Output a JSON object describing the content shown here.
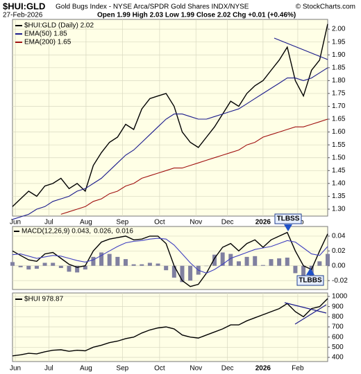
{
  "header": {
    "symbol": "$HUI:GLD",
    "description": "Gold Bugs Index - NYSE Arca/SPDR Gold Shares INDX/NYSE",
    "source": "© StockCharts.com",
    "date": "27-Feb-2026",
    "ohlc": "Open 1.99 High 2.03 Low 1.99 Close 2.02 Chg +0.01 (+0.46%)"
  },
  "chart_data": [
    {
      "type": "line",
      "legend_layout": "stacked",
      "grid": true,
      "x": [
        0,
        1,
        2,
        3,
        4,
        5,
        6,
        7,
        8,
        9,
        10,
        11,
        12,
        13,
        14,
        15,
        16,
        17,
        18,
        19,
        20,
        21,
        22,
        23,
        24,
        25,
        26,
        27,
        28,
        29,
        30,
        31,
        32,
        33,
        34,
        35,
        36,
        37,
        38,
        39
      ],
      "xlim": [
        0,
        39
      ],
      "xticks": [
        {
          "value": 0.35,
          "label": "Jun"
        },
        {
          "value": 4.5,
          "label": "Jul"
        },
        {
          "value": 9.1,
          "label": "Aug"
        },
        {
          "value": 13.6,
          "label": "Sep"
        },
        {
          "value": 18.2,
          "label": "Oct"
        },
        {
          "value": 22.7,
          "label": "Nov"
        },
        {
          "value": 26.6,
          "label": "Dec"
        },
        {
          "value": 31,
          "label": "2026"
        },
        {
          "value": 35.3,
          "label": "Feb"
        }
      ],
      "ylim": [
        1.273,
        2.038
      ],
      "yticks": [
        {
          "value": 1.3,
          "label": "1.30"
        },
        1.35,
        {
          "value": 1.4,
          "label": "1.40"
        },
        1.45,
        {
          "value": 1.5,
          "label": "1.50"
        },
        1.55,
        {
          "value": 1.6,
          "label": "1.60"
        },
        1.65,
        {
          "value": 1.7,
          "label": "1.70"
        },
        1.75,
        {
          "value": 1.8,
          "label": "1.80"
        },
        1.85,
        {
          "value": 1.9,
          "label": "1.90"
        },
        1.95,
        {
          "value": 2.0,
          "label": "2.00"
        }
      ],
      "series": [
        {
          "name": "$HUI:GLD (Daily) 2.02",
          "color": "#000000",
          "values": [
            1.31,
            1.34,
            1.37,
            1.35,
            1.39,
            1.4,
            1.42,
            1.38,
            1.4,
            1.37,
            1.47,
            1.52,
            1.56,
            1.58,
            1.63,
            1.61,
            1.69,
            1.73,
            1.74,
            1.75,
            1.7,
            1.6,
            1.56,
            1.54,
            1.58,
            1.62,
            1.67,
            1.72,
            1.7,
            1.75,
            1.78,
            1.8,
            1.84,
            1.88,
            1.93,
            1.8,
            1.74,
            1.84,
            1.88,
            2.02
          ]
        },
        {
          "name": "EMA(50) 1.85",
          "color": "#1a1a8c",
          "values": [
            1.26,
            1.27,
            1.28,
            1.3,
            1.31,
            1.33,
            1.34,
            1.35,
            1.37,
            1.38,
            1.4,
            1.42,
            1.45,
            1.48,
            1.51,
            1.53,
            1.56,
            1.59,
            1.62,
            1.65,
            1.67,
            1.67,
            1.66,
            1.65,
            1.65,
            1.66,
            1.67,
            1.68,
            1.69,
            1.71,
            1.73,
            1.75,
            1.77,
            1.79,
            1.81,
            1.81,
            1.8,
            1.81,
            1.83,
            1.85
          ]
        },
        {
          "name": "EMA(200) 1.65",
          "color": "#a01010",
          "values": [
            null,
            null,
            null,
            null,
            null,
            null,
            1.28,
            1.29,
            1.3,
            1.31,
            1.33,
            1.34,
            1.36,
            1.37,
            1.39,
            1.4,
            1.42,
            1.43,
            1.44,
            1.45,
            1.46,
            1.46,
            1.47,
            1.48,
            1.49,
            1.5,
            1.51,
            1.52,
            1.53,
            1.55,
            1.56,
            1.58,
            1.59,
            1.6,
            1.61,
            1.62,
            1.62,
            1.63,
            1.64,
            1.65
          ]
        }
      ]
    },
    {
      "type": "line",
      "legend_layout": "inline",
      "grid": true,
      "x": [
        0,
        1,
        2,
        3,
        4,
        5,
        6,
        7,
        8,
        9,
        10,
        11,
        12,
        13,
        14,
        15,
        16,
        17,
        18,
        19,
        20,
        21,
        22,
        23,
        24,
        25,
        26,
        27,
        28,
        29,
        30,
        31,
        32,
        33,
        34,
        35,
        36,
        37,
        38,
        39
      ],
      "xlim": [
        0,
        39
      ],
      "ylim": [
        -0.032,
        0.053
      ],
      "yticks": [
        {
          "value": -0.02,
          "label": "-0.02"
        },
        {
          "value": 0,
          "label": "0.00"
        },
        0.02,
        0.04
      ],
      "series": [
        {
          "name": "MACD(12,26,9) 0.043,",
          "color": "#000000",
          "values": [
            0.02,
            0.014,
            0.008,
            0.006,
            0.016,
            0.018,
            0.01,
            0.002,
            -0.002,
            0.0,
            0.02,
            0.032,
            0.036,
            0.038,
            0.04,
            0.035,
            0.036,
            0.04,
            0.04,
            0.03,
            0.0,
            -0.02,
            -0.028,
            -0.025,
            -0.01,
            0.01,
            0.025,
            0.03,
            0.02,
            0.03,
            0.035,
            0.025,
            0.035,
            0.04,
            0.045,
            0.02,
            0.0,
            -0.005,
            0.02,
            0.043
          ]
        },
        {
          "name": "0.026,",
          "color": "#4040c0",
          "values": [
            0.015,
            0.016,
            0.013,
            0.01,
            0.012,
            0.014,
            0.013,
            0.01,
            0.007,
            0.005,
            0.008,
            0.014,
            0.02,
            0.026,
            0.031,
            0.033,
            0.034,
            0.036,
            0.037,
            0.036,
            0.028,
            0.016,
            0.004,
            -0.006,
            -0.01,
            -0.005,
            0.002,
            0.01,
            0.014,
            0.018,
            0.022,
            0.024,
            0.026,
            0.03,
            0.034,
            0.032,
            0.024,
            0.016,
            0.014,
            0.026
          ]
        },
        {
          "name": "0.016",
          "color": "#8080a0",
          "style": "bar",
          "values": [
            0.005,
            -0.002,
            -0.005,
            -0.004,
            0.004,
            0.004,
            -0.003,
            -0.008,
            -0.009,
            -0.005,
            0.012,
            0.018,
            0.016,
            0.012,
            0.009,
            0.002,
            0.002,
            0.004,
            0.003,
            -0.006,
            -0.016,
            -0.022,
            -0.02,
            -0.012,
            0.0,
            0.015,
            0.018,
            0.016,
            0.006,
            0.012,
            0.013,
            0.001,
            0.009,
            0.01,
            0.011,
            -0.01,
            -0.016,
            -0.014,
            0.006,
            0.016
          ]
        }
      ],
      "annotations": [
        {
          "text": "TLBSS"
        },
        {
          "text": "TLBBS"
        }
      ]
    },
    {
      "type": "line",
      "legend_layout": "stacked",
      "grid": true,
      "x": [
        0,
        1,
        2,
        3,
        4,
        5,
        6,
        7,
        8,
        9,
        10,
        11,
        12,
        13,
        14,
        15,
        16,
        17,
        18,
        19,
        20,
        21,
        22,
        23,
        24,
        25,
        26,
        27,
        28,
        29,
        30,
        31,
        32,
        33,
        34,
        35,
        36,
        37,
        38,
        39
      ],
      "xlim": [
        0,
        39
      ],
      "xticks": [
        {
          "value": 0.35,
          "label": "Jun"
        },
        {
          "value": 4.5,
          "label": "Jul"
        },
        {
          "value": 9.1,
          "label": "Aug"
        },
        {
          "value": 13.6,
          "label": "Sep"
        },
        {
          "value": 18.2,
          "label": "Oct"
        },
        {
          "value": 22.7,
          "label": "Nov"
        },
        {
          "value": 26.6,
          "label": "Dec"
        },
        {
          "value": 31,
          "label": "2026"
        },
        {
          "value": 35.3,
          "label": "Feb"
        }
      ],
      "ylim": [
        359,
        1034
      ],
      "yticks": [
        400,
        500,
        600,
        700,
        800,
        900,
        1000
      ],
      "series": [
        {
          "name": "$HUI 978.87",
          "color": "#000000",
          "values": [
            415,
            425,
            440,
            435,
            455,
            470,
            475,
            460,
            470,
            465,
            500,
            520,
            545,
            560,
            585,
            600,
            640,
            670,
            690,
            700,
            680,
            620,
            600,
            590,
            620,
            650,
            680,
            720,
            720,
            760,
            790,
            820,
            850,
            880,
            930,
            850,
            800,
            880,
            900,
            978.87
          ]
        }
      ]
    }
  ]
}
